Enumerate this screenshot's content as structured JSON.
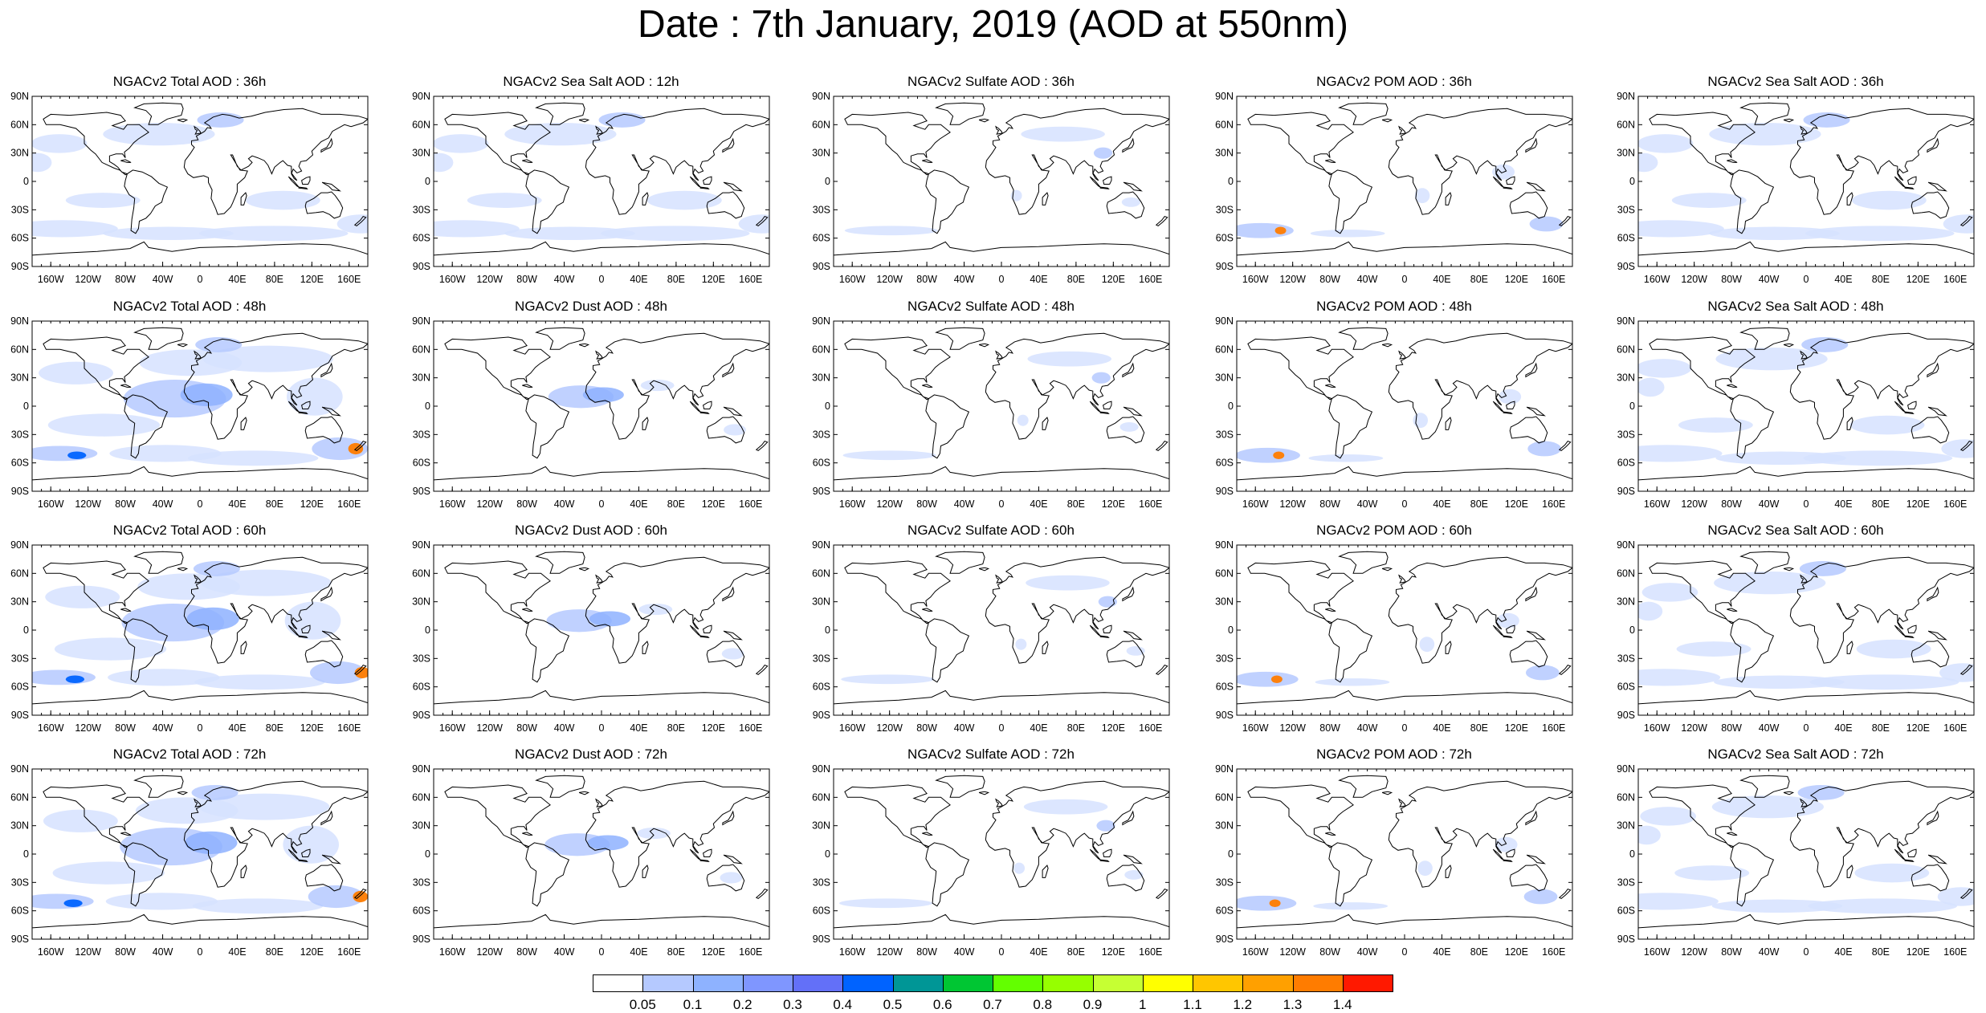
{
  "title": "Date : 7th January, 2019 (AOD at 550nm)",
  "lat_ticks": [
    "90N",
    "60N",
    "30N",
    "0",
    "30S",
    "60S",
    "90S"
  ],
  "lon_ticks": [
    "160W",
    "120W",
    "80W",
    "40W",
    "0",
    "40E",
    "80E",
    "120E",
    "160E"
  ],
  "panel_titles": [
    [
      "NGACv2 Total AOD : 36h",
      "NGACv2 Sea Salt  AOD : 12h",
      "NGACv2 Sulfate AOD : 36h",
      "NGACv2 POM AOD : 36h",
      "NGACv2 Sea Salt AOD : 36h"
    ],
    [
      "NGACv2 Total AOD : 48h",
      "NGACv2 Dust AOD : 48h",
      "NGACv2 Sulfate AOD : 48h",
      "NGACv2 POM AOD : 48h",
      "NGACv2 Sea Salt AOD : 48h"
    ],
    [
      "NGACv2 Total AOD : 60h",
      "NGACv2 Dust AOD : 60h",
      "NGACv2 Sulfate AOD : 60h",
      "NGACv2 POM AOD : 60h",
      "NGACv2 Sea Salt AOD : 60h"
    ],
    [
      "NGACv2 Total AOD : 72h",
      "NGACv2 Dust AOD : 72h",
      "NGACv2 Sulfate AOD : 72h",
      "NGACv2 POM AOD : 72h",
      "NGACv2 Sea Salt AOD : 72h"
    ]
  ],
  "colorbar": {
    "labels": [
      "0.05",
      "0.1",
      "0.2",
      "0.3",
      "0.4",
      "0.5",
      "0.6",
      "0.7",
      "0.8",
      "0.9",
      "1",
      "1.1",
      "1.2",
      "1.3",
      "1.4"
    ],
    "colors": [
      "#ffffff",
      "#d6e2ff",
      "#b5c9ff",
      "#8eb2ff",
      "#7f96ff",
      "#6370f8",
      "#0063ff",
      "#009696",
      "#00c633",
      "#63ff00",
      "#96ff00",
      "#c6ff33",
      "#ffff00",
      "#ffc600",
      "#ffa000",
      "#ff7c00",
      "#ff1900"
    ]
  },
  "colors": {
    "land_outline": "#000000",
    "aerosol_light": "#d6e2ff",
    "aerosol_mid": "#8eb2ff",
    "aerosol_dark": "#6370f8"
  }
}
